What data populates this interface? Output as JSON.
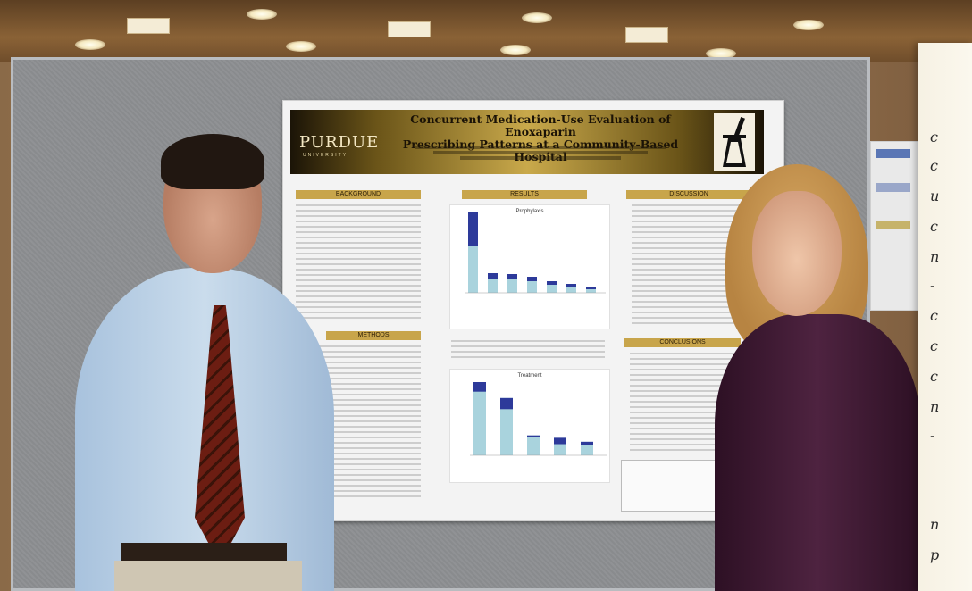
{
  "poster": {
    "university": "PURDUE",
    "university_sub": "UNIVERSITY",
    "title_line1": "Concurrent Medication-Use Evaluation of Enoxaparin",
    "title_line2": "Prescribing Patterns at a Community-Based Hospital",
    "sections": {
      "background": "BACKGROUND",
      "methods": "METHODS",
      "results": "RESULTS",
      "discussion": "DISCUSSION",
      "conclusions": "CONCLUSIONS"
    },
    "chart1": {
      "title": "Prophylaxis",
      "values": [
        90,
        22,
        21,
        18,
        13,
        10,
        6
      ],
      "dark_portion": [
        38,
        6,
        6,
        5,
        4,
        3,
        2
      ]
    },
    "chart2": {
      "title": "Treatment",
      "values": [
        92,
        72,
        25,
        22,
        17
      ],
      "dark_portion": [
        12,
        14,
        2,
        8,
        4
      ]
    }
  },
  "colors": {
    "banner_gold": "#c9a94b",
    "section_header": "#c8a54b",
    "bar_light": "#a9d3dd",
    "bar_dark": "#2d3a9a"
  }
}
